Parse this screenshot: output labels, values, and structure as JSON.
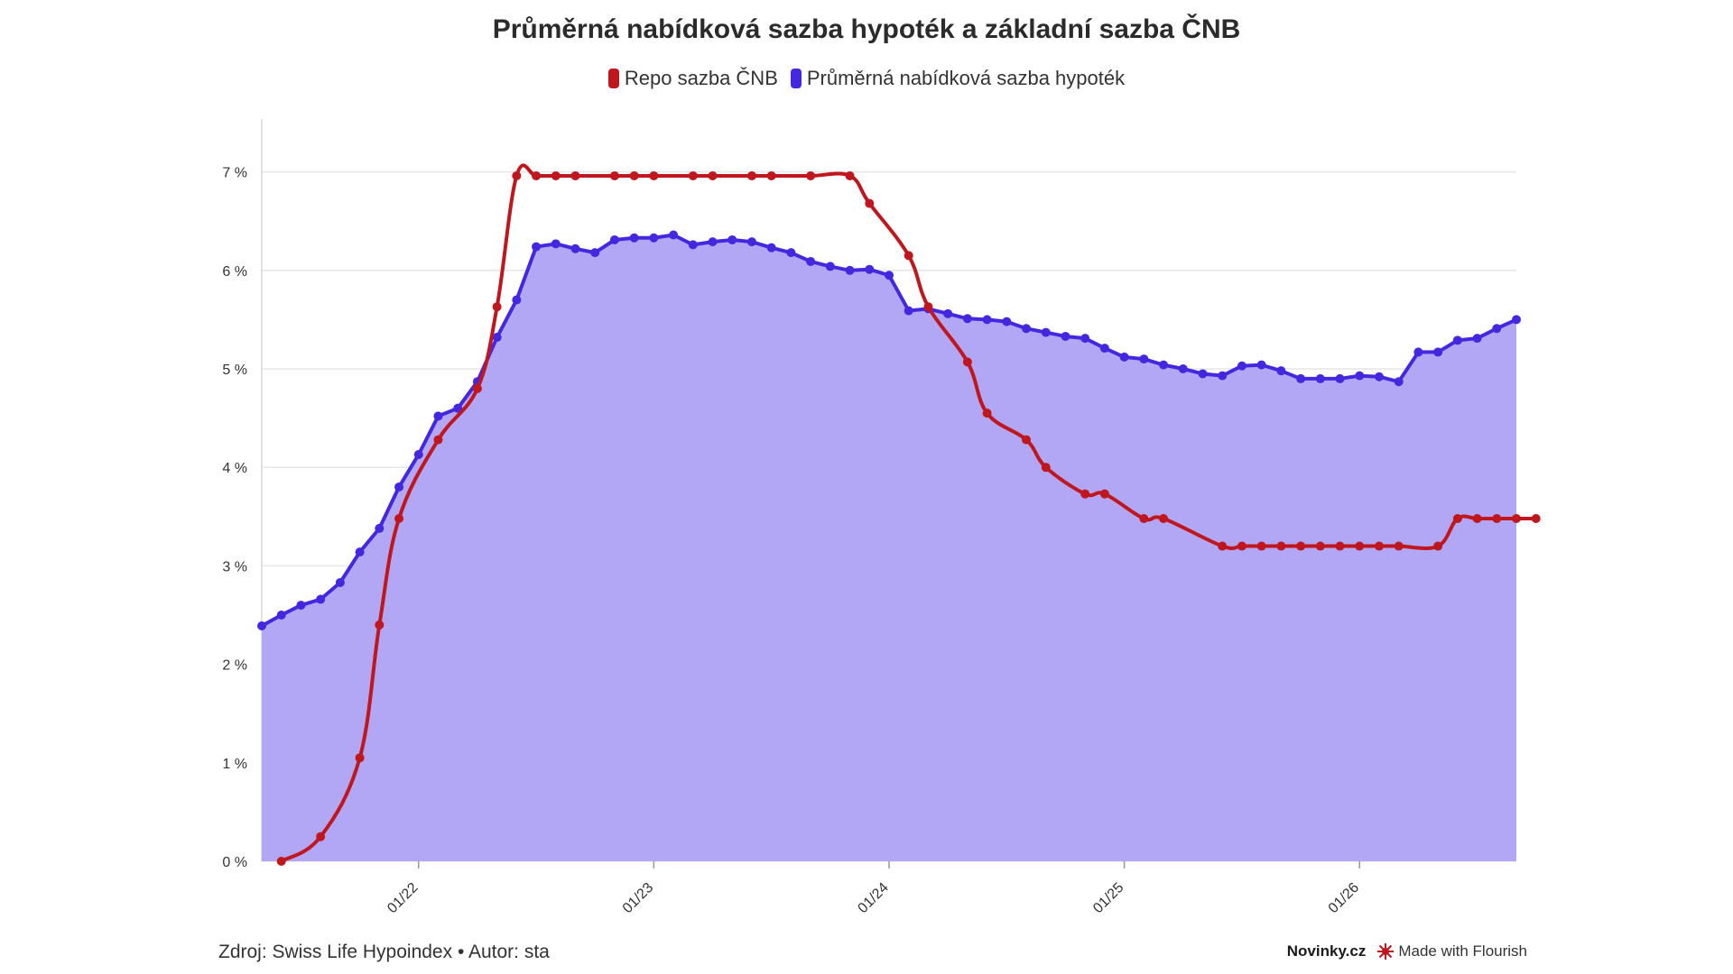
{
  "title": "Průměrná nabídková sazba hypoték a základní sazba ČNB",
  "footer": {
    "source": "Zdroj: Swiss Life Hypoindex • Autor: sta",
    "brand": "Novinky.cz",
    "credit": "Made with Flourish"
  },
  "colors": {
    "repo": "#c0161d",
    "mortgage": "#4428e0",
    "area": "#b1a7f4",
    "grid": "#e6e6e6"
  },
  "chart_data": {
    "type": "area",
    "title": "Průměrná nabídková sazba hypoték a základní sazba ČNB",
    "legend_position": "top-center",
    "grid": true,
    "xlabel": "",
    "ylabel": "",
    "x_range": [
      "2021-05",
      "2026-08"
    ],
    "ylim": [
      0,
      7.5
    ],
    "y_ticks": [
      0,
      1,
      2,
      3,
      4,
      5,
      6,
      7
    ],
    "y_tick_labels": [
      "0 %",
      "1 %",
      "2 %",
      "3 %",
      "4 %",
      "5 %",
      "6 %",
      "7 %"
    ],
    "x_ticks": [
      "2022-01",
      "2023-01",
      "2024-01",
      "2025-01",
      "2026-01"
    ],
    "x_tick_labels": [
      "01/22",
      "01/23",
      "01/24",
      "01/25",
      "01/26"
    ],
    "series": [
      {
        "name": "Repo sazba ČNB",
        "color": "#c0161d",
        "style": "line",
        "points": [
          [
            "2021-06",
            0.0
          ],
          [
            "2021-08",
            0.25
          ],
          [
            "2021-10",
            1.05
          ],
          [
            "2021-11",
            2.4
          ],
          [
            "2021-12",
            3.48
          ],
          [
            "2022-02",
            4.28
          ],
          [
            "2022-04",
            4.8
          ],
          [
            "2022-05",
            5.63
          ],
          [
            "2022-06",
            6.96
          ],
          [
            "2022-07",
            6.96
          ],
          [
            "2022-08",
            6.96
          ],
          [
            "2022-09",
            6.96
          ],
          [
            "2022-11",
            6.96
          ],
          [
            "2022-12",
            6.96
          ],
          [
            "2023-01",
            6.96
          ],
          [
            "2023-03",
            6.96
          ],
          [
            "2023-04",
            6.96
          ],
          [
            "2023-06",
            6.96
          ],
          [
            "2023-07",
            6.96
          ],
          [
            "2023-09",
            6.96
          ],
          [
            "2023-11",
            6.96
          ],
          [
            "2023-12",
            6.68
          ],
          [
            "2024-02",
            6.15
          ],
          [
            "2024-03",
            5.63
          ],
          [
            "2024-05",
            5.07
          ],
          [
            "2024-06",
            4.55
          ],
          [
            "2024-08",
            4.28
          ],
          [
            "2024-09",
            4.0
          ],
          [
            "2024-11",
            3.73
          ],
          [
            "2024-12",
            3.73
          ],
          [
            "2025-02",
            3.48
          ],
          [
            "2025-03",
            3.48
          ],
          [
            "2025-06",
            3.2
          ],
          [
            "2025-07",
            3.2
          ],
          [
            "2025-08",
            3.2
          ],
          [
            "2025-09",
            3.2
          ],
          [
            "2025-10",
            3.2
          ],
          [
            "2025-11",
            3.2
          ],
          [
            "2025-12",
            3.2
          ],
          [
            "2026-01",
            3.2
          ],
          [
            "2026-02",
            3.2
          ],
          [
            "2026-03",
            3.2
          ],
          [
            "2026-05",
            3.2
          ],
          [
            "2026-06",
            3.48
          ],
          [
            "2026-07",
            3.48
          ],
          [
            "2026-08",
            3.48
          ],
          [
            "2026-09",
            3.48
          ],
          [
            "2026-10",
            3.48
          ]
        ]
      },
      {
        "name": "Průměrná nabídková sazba hypoték",
        "color": "#4428e0",
        "style": "area",
        "points": [
          [
            "2021-05",
            2.39
          ],
          [
            "2021-06",
            2.5
          ],
          [
            "2021-07",
            2.6
          ],
          [
            "2021-08",
            2.66
          ],
          [
            "2021-09",
            2.83
          ],
          [
            "2021-10",
            3.14
          ],
          [
            "2021-11",
            3.38
          ],
          [
            "2021-12",
            3.8
          ],
          [
            "2022-01",
            4.13
          ],
          [
            "2022-02",
            4.52
          ],
          [
            "2022-03",
            4.6
          ],
          [
            "2022-04",
            4.87
          ],
          [
            "2022-05",
            5.32
          ],
          [
            "2022-06",
            5.7
          ],
          [
            "2022-07",
            6.24
          ],
          [
            "2022-08",
            6.27
          ],
          [
            "2022-09",
            6.22
          ],
          [
            "2022-10",
            6.18
          ],
          [
            "2022-11",
            6.31
          ],
          [
            "2022-12",
            6.33
          ],
          [
            "2023-01",
            6.33
          ],
          [
            "2023-02",
            6.36
          ],
          [
            "2023-03",
            6.26
          ],
          [
            "2023-04",
            6.29
          ],
          [
            "2023-05",
            6.31
          ],
          [
            "2023-06",
            6.29
          ],
          [
            "2023-07",
            6.23
          ],
          [
            "2023-08",
            6.18
          ],
          [
            "2023-09",
            6.09
          ],
          [
            "2023-10",
            6.04
          ],
          [
            "2023-11",
            6.0
          ],
          [
            "2023-12",
            6.01
          ],
          [
            "2024-01",
            5.95
          ],
          [
            "2024-02",
            5.59
          ],
          [
            "2024-03",
            5.61
          ],
          [
            "2024-04",
            5.56
          ],
          [
            "2024-05",
            5.51
          ],
          [
            "2024-06",
            5.5
          ],
          [
            "2024-07",
            5.48
          ],
          [
            "2024-08",
            5.41
          ],
          [
            "2024-09",
            5.37
          ],
          [
            "2024-10",
            5.33
          ],
          [
            "2024-11",
            5.31
          ],
          [
            "2024-12",
            5.21
          ],
          [
            "2025-01",
            5.12
          ],
          [
            "2025-02",
            5.1
          ],
          [
            "2025-03",
            5.04
          ],
          [
            "2025-04",
            5.0
          ],
          [
            "2025-05",
            4.95
          ],
          [
            "2025-06",
            4.93
          ],
          [
            "2025-07",
            5.03
          ],
          [
            "2025-08",
            5.04
          ],
          [
            "2025-09",
            4.98
          ],
          [
            "2025-10",
            4.9
          ],
          [
            "2025-11",
            4.9
          ],
          [
            "2025-12",
            4.9
          ],
          [
            "2026-01",
            4.93
          ],
          [
            "2026-02",
            4.92
          ],
          [
            "2026-03",
            4.87
          ],
          [
            "2026-04",
            5.17
          ],
          [
            "2026-05",
            5.17
          ],
          [
            "2026-06",
            5.29
          ],
          [
            "2026-07",
            5.31
          ],
          [
            "2026-08",
            5.41
          ],
          [
            "2026-09",
            5.5
          ]
        ]
      }
    ]
  }
}
